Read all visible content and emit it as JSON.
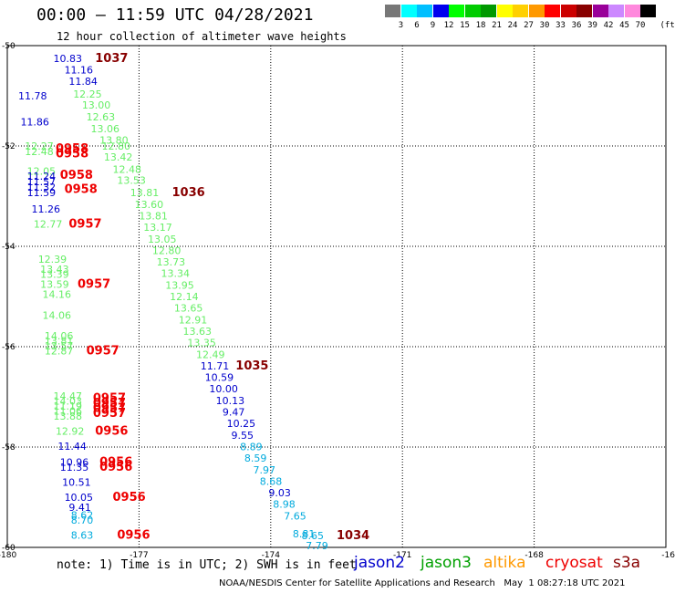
{
  "title": "00:00 – 11:59 UTC 04/28/2021",
  "subtitle": "12 hour collection of altimeter wave heights",
  "legend": {
    "unit": "(ft)",
    "levels": [
      "3",
      "6",
      "9",
      "12",
      "15",
      "18",
      "21",
      "24",
      "27",
      "30",
      "33",
      "36",
      "39",
      "42",
      "45",
      "70"
    ],
    "colors": [
      "#777777",
      "#00ffff",
      "#00bfff",
      "#0000ee",
      "#00ff00",
      "#00cc00",
      "#009900",
      "#ffff00",
      "#ffd000",
      "#ff9900",
      "#ff0000",
      "#cc0000",
      "#880000",
      "#990099",
      "#cc88ff",
      "#ff88dd",
      "#000000"
    ]
  },
  "map": {
    "lon_ticks": [
      "-180",
      "-177",
      "-174",
      "-171",
      "-168",
      "-16"
    ],
    "lat_ticks": [
      "-50",
      "-52",
      "-54",
      "-56",
      "-58",
      "-60"
    ],
    "lon_range": [
      -180,
      -165
    ],
    "lat_range": [
      -60,
      -50
    ]
  },
  "satellites": [
    {
      "name": "jason2",
      "color": "#0000cc"
    },
    {
      "name": "jason3",
      "color": "#00a000"
    },
    {
      "name": "altika",
      "color": "#ff9900"
    },
    {
      "name": "cryosat",
      "color": "#ee0000"
    },
    {
      "name": "s3a",
      "color": "#880000"
    }
  ],
  "note": "note: 1) Time is in UTC; 2) SWH is in feet",
  "credit": "NOAA/NESDIS Center for Satellite Applications and Research   May  1 08:27:18 UTC 2021",
  "observations": [
    {
      "text": "10.83",
      "color": "#0000cc",
      "lon": -178.95,
      "lat": -50.25
    },
    {
      "text": "1037",
      "color": "#880000",
      "lon": -178.0,
      "lat": -50.25
    },
    {
      "text": "11.16",
      "color": "#0000cc",
      "lon": -178.7,
      "lat": -50.48
    },
    {
      "text": "11.84",
      "color": "#0000cc",
      "lon": -178.6,
      "lat": -50.71
    },
    {
      "text": "11.78",
      "color": "#0000cc",
      "lon": -179.75,
      "lat": -51.0
    },
    {
      "text": "12.25",
      "color": "#66ee66",
      "lon": -178.5,
      "lat": -50.96
    },
    {
      "text": "13.00",
      "color": "#66ee66",
      "lon": -178.3,
      "lat": -51.18
    },
    {
      "text": "12.63",
      "color": "#66ee66",
      "lon": -178.2,
      "lat": -51.42
    },
    {
      "text": "11.86",
      "color": "#0000cc",
      "lon": -179.7,
      "lat": -51.52
    },
    {
      "text": "13.06",
      "color": "#66ee66",
      "lon": -178.1,
      "lat": -51.65
    },
    {
      "text": "13.80",
      "color": "#66ee66",
      "lon": -177.9,
      "lat": -51.88
    },
    {
      "text": "12.27",
      "color": "#66ee66",
      "lon": -179.6,
      "lat": -52.0
    },
    {
      "text": "12.48",
      "color": "#66ee66",
      "lon": -179.6,
      "lat": -52.11
    },
    {
      "text": "12.80",
      "color": "#66ee66",
      "lon": -177.85,
      "lat": -52.0
    },
    {
      "text": "0958",
      "color": "#ee0000",
      "lon": -178.9,
      "lat": -52.05
    },
    {
      "text": "0958",
      "color": "#ee0000",
      "lon": -178.9,
      "lat": -52.15
    },
    {
      "text": "13.42",
      "color": "#66ee66",
      "lon": -177.8,
      "lat": -52.22
    },
    {
      "text": "12.05",
      "color": "#66ee66",
      "lon": -179.55,
      "lat": -52.5
    },
    {
      "text": "12.48",
      "color": "#66ee66",
      "lon": -177.6,
      "lat": -52.46
    },
    {
      "text": "11.24",
      "color": "#0000cc",
      "lon": -179.55,
      "lat": -52.6
    },
    {
      "text": "0958",
      "color": "#ee0000",
      "lon": -178.8,
      "lat": -52.58
    },
    {
      "text": "13.53",
      "color": "#66ee66",
      "lon": -177.5,
      "lat": -52.68
    },
    {
      "text": "11.57",
      "color": "#0000cc",
      "lon": -179.55,
      "lat": -52.71
    },
    {
      "text": "11.32",
      "color": "#0000cc",
      "lon": -179.55,
      "lat": -52.82
    },
    {
      "text": "0958",
      "color": "#ee0000",
      "lon": -178.7,
      "lat": -52.86
    },
    {
      "text": "11.59",
      "color": "#0000cc",
      "lon": -179.55,
      "lat": -52.93
    },
    {
      "text": "13.81",
      "color": "#66ee66",
      "lon": -177.2,
      "lat": -52.93
    },
    {
      "text": "1036",
      "color": "#880000",
      "lon": -176.25,
      "lat": -52.93
    },
    {
      "text": "13.60",
      "color": "#66ee66",
      "lon": -177.1,
      "lat": -53.16
    },
    {
      "text": "11.26",
      "color": "#0000cc",
      "lon": -179.45,
      "lat": -53.25
    },
    {
      "text": "13.81",
      "color": "#66ee66",
      "lon": -177.0,
      "lat": -53.39
    },
    {
      "text": "12.77",
      "color": "#66ee66",
      "lon": -179.4,
      "lat": -53.55
    },
    {
      "text": "0957",
      "color": "#ee0000",
      "lon": -178.6,
      "lat": -53.55
    },
    {
      "text": "13.17",
      "color": "#66ee66",
      "lon": -176.9,
      "lat": -53.62
    },
    {
      "text": "13.05",
      "color": "#66ee66",
      "lon": -176.8,
      "lat": -53.85
    },
    {
      "text": "12.80",
      "color": "#66ee66",
      "lon": -176.7,
      "lat": -54.08
    },
    {
      "text": "12.39",
      "color": "#66ee66",
      "lon": -179.3,
      "lat": -54.25
    },
    {
      "text": "13.73",
      "color": "#66ee66",
      "lon": -176.6,
      "lat": -54.31
    },
    {
      "text": "13.43",
      "color": "#66ee66",
      "lon": -179.25,
      "lat": -54.45
    },
    {
      "text": "13.39",
      "color": "#66ee66",
      "lon": -179.25,
      "lat": -54.55
    },
    {
      "text": "13.34",
      "color": "#66ee66",
      "lon": -176.5,
      "lat": -54.54
    },
    {
      "text": "13.59",
      "color": "#66ee66",
      "lon": -179.25,
      "lat": -54.75
    },
    {
      "text": "0957",
      "color": "#ee0000",
      "lon": -178.4,
      "lat": -54.75
    },
    {
      "text": "13.95",
      "color": "#66ee66",
      "lon": -176.4,
      "lat": -54.77
    },
    {
      "text": "14.16",
      "color": "#66ee66",
      "lon": -179.2,
      "lat": -54.95
    },
    {
      "text": "12.14",
      "color": "#66ee66",
      "lon": -176.3,
      "lat": -55.0
    },
    {
      "text": "13.65",
      "color": "#66ee66",
      "lon": -176.2,
      "lat": -55.23
    },
    {
      "text": "14.06",
      "color": "#66ee66",
      "lon": -179.2,
      "lat": -55.37
    },
    {
      "text": "12.91",
      "color": "#66ee66",
      "lon": -176.1,
      "lat": -55.46
    },
    {
      "text": "14.06",
      "color": "#66ee66",
      "lon": -179.15,
      "lat": -55.78
    },
    {
      "text": "13.63",
      "color": "#66ee66",
      "lon": -176.0,
      "lat": -55.69
    },
    {
      "text": "13.81",
      "color": "#66ee66",
      "lon": -179.15,
      "lat": -55.88
    },
    {
      "text": "13.57",
      "color": "#66ee66",
      "lon": -179.15,
      "lat": -55.98
    },
    {
      "text": "12.87",
      "color": "#66ee66",
      "lon": -179.15,
      "lat": -56.08
    },
    {
      "text": "13.35",
      "color": "#66ee66",
      "lon": -175.9,
      "lat": -55.92
    },
    {
      "text": "0957",
      "color": "#ee0000",
      "lon": -178.2,
      "lat": -56.08
    },
    {
      "text": "12.49",
      "color": "#66ee66",
      "lon": -175.7,
      "lat": -56.15
    },
    {
      "text": "11.71",
      "color": "#0000cc",
      "lon": -175.6,
      "lat": -56.38
    },
    {
      "text": "1035",
      "color": "#880000",
      "lon": -174.8,
      "lat": -56.38
    },
    {
      "text": "10.59",
      "color": "#0000cc",
      "lon": -175.5,
      "lat": -56.61
    },
    {
      "text": "14.47",
      "color": "#66ee66",
      "lon": -178.95,
      "lat": -56.98
    },
    {
      "text": "14.03",
      "color": "#66ee66",
      "lon": -178.95,
      "lat": -57.08
    },
    {
      "text": "11.19",
      "color": "#66ee66",
      "lon": -178.95,
      "lat": -57.18
    },
    {
      "text": "11.06",
      "color": "#66ee66",
      "lon": -178.95,
      "lat": -57.28
    },
    {
      "text": "13.88",
      "color": "#66ee66",
      "lon": -178.95,
      "lat": -57.38
    },
    {
      "text": "0957",
      "color": "#ee0000",
      "lon": -178.05,
      "lat": -57.03
    },
    {
      "text": "0957",
      "color": "#ee0000",
      "lon": -178.05,
      "lat": -57.13
    },
    {
      "text": "0957",
      "color": "#ee0000",
      "lon": -178.05,
      "lat": -57.23
    },
    {
      "text": "0957",
      "color": "#ee0000",
      "lon": -178.05,
      "lat": -57.33
    },
    {
      "text": "10.00",
      "color": "#0000cc",
      "lon": -175.4,
      "lat": -56.84
    },
    {
      "text": "10.13",
      "color": "#0000cc",
      "lon": -175.25,
      "lat": -57.07
    },
    {
      "text": "9.47",
      "color": "#0000cc",
      "lon": -175.1,
      "lat": -57.3
    },
    {
      "text": "12.92",
      "color": "#66ee66",
      "lon": -178.9,
      "lat": -57.68
    },
    {
      "text": "0956",
      "color": "#ee0000",
      "lon": -178.0,
      "lat": -57.68
    },
    {
      "text": "10.25",
      "color": "#0000cc",
      "lon": -175.0,
      "lat": -57.53
    },
    {
      "text": "9.55",
      "color": "#0000cc",
      "lon": -174.9,
      "lat": -57.76
    },
    {
      "text": "11.44",
      "color": "#0000cc",
      "lon": -178.85,
      "lat": -57.98
    },
    {
      "text": "8.89",
      "color": "#00aadd",
      "lon": -174.7,
      "lat": -57.99
    },
    {
      "text": "10.96",
      "color": "#0000cc",
      "lon": -178.8,
      "lat": -58.3
    },
    {
      "text": "11.35",
      "color": "#0000cc",
      "lon": -178.8,
      "lat": -58.4
    },
    {
      "text": "0956",
      "color": "#ee0000",
      "lon": -177.9,
      "lat": -58.3
    },
    {
      "text": "0956",
      "color": "#ee0000",
      "lon": -177.9,
      "lat": -58.4
    },
    {
      "text": "8.59",
      "color": "#00aadd",
      "lon": -174.6,
      "lat": -58.22
    },
    {
      "text": "7.97",
      "color": "#00aadd",
      "lon": -174.4,
      "lat": -58.45
    },
    {
      "text": "10.51",
      "color": "#0000cc",
      "lon": -178.75,
      "lat": -58.7
    },
    {
      "text": "8.68",
      "color": "#00aadd",
      "lon": -174.25,
      "lat": -58.68
    },
    {
      "text": "10.05",
      "color": "#0000cc",
      "lon": -178.7,
      "lat": -59.0
    },
    {
      "text": "0956",
      "color": "#ee0000",
      "lon": -177.6,
      "lat": -59.0
    },
    {
      "text": "9.03",
      "color": "#0000cc",
      "lon": -174.05,
      "lat": -58.91
    },
    {
      "text": "9.41",
      "color": "#0000cc",
      "lon": -178.6,
      "lat": -59.2
    },
    {
      "text": "8.98",
      "color": "#00aadd",
      "lon": -173.95,
      "lat": -59.14
    },
    {
      "text": "8.62",
      "color": "#00aadd",
      "lon": -178.55,
      "lat": -59.35
    },
    {
      "text": "8.70",
      "color": "#00aadd",
      "lon": -178.55,
      "lat": -59.45
    },
    {
      "text": "7.65",
      "color": "#00aadd",
      "lon": -173.7,
      "lat": -59.37
    },
    {
      "text": "8.63",
      "color": "#00aadd",
      "lon": -178.55,
      "lat": -59.75
    },
    {
      "text": "0956",
      "color": "#ee0000",
      "lon": -177.5,
      "lat": -59.75
    },
    {
      "text": "8.81",
      "color": "#00aadd",
      "lon": -173.5,
      "lat": -59.73
    },
    {
      "text": "8.65",
      "color": "#00aadd",
      "lon": -173.3,
      "lat": -59.76
    },
    {
      "text": "1034",
      "color": "#880000",
      "lon": -172.5,
      "lat": -59.76
    },
    {
      "text": "7.79",
      "color": "#00aadd",
      "lon": -173.2,
      "lat": -59.96
    }
  ]
}
